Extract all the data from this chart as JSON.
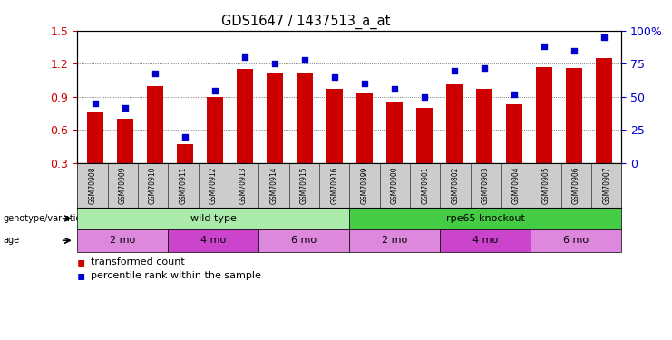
{
  "title": "GDS1647 / 1437513_a_at",
  "samples": [
    "GSM70908",
    "GSM70909",
    "GSM70910",
    "GSM70911",
    "GSM70912",
    "GSM70913",
    "GSM70914",
    "GSM70915",
    "GSM70916",
    "GSM70899",
    "GSM70900",
    "GSM70901",
    "GSM70802",
    "GSM70903",
    "GSM70904",
    "GSM70905",
    "GSM70906",
    "GSM70907"
  ],
  "bar_values": [
    0.76,
    0.7,
    1.0,
    0.47,
    0.9,
    1.15,
    1.12,
    1.11,
    0.97,
    0.93,
    0.86,
    0.8,
    1.01,
    0.97,
    0.83,
    1.17,
    1.16,
    1.25
  ],
  "dot_values": [
    45,
    42,
    68,
    20,
    55,
    80,
    75,
    78,
    65,
    60,
    56,
    50,
    70,
    72,
    52,
    88,
    85,
    95
  ],
  "bar_color": "#cc0000",
  "dot_color": "#0000cc",
  "ylim_left": [
    0.3,
    1.5
  ],
  "ylim_right": [
    0,
    100
  ],
  "yticks_left": [
    0.3,
    0.6,
    0.9,
    1.2,
    1.5
  ],
  "yticks_right": [
    0,
    25,
    50,
    75,
    100
  ],
  "ytick_labels_right": [
    "0",
    "25",
    "50",
    "75",
    "100%"
  ],
  "genotype_groups": [
    {
      "label": "wild type",
      "start": 0,
      "end": 9,
      "color": "#aaeaaa"
    },
    {
      "label": "rpe65 knockout",
      "start": 9,
      "end": 18,
      "color": "#44cc44"
    }
  ],
  "age_groups": [
    {
      "label": "2 mo",
      "start": 0,
      "end": 3,
      "color": "#dd88dd"
    },
    {
      "label": "4 mo",
      "start": 3,
      "end": 6,
      "color": "#cc44cc"
    },
    {
      "label": "6 mo",
      "start": 6,
      "end": 9,
      "color": "#dd88dd"
    },
    {
      "label": "2 mo",
      "start": 9,
      "end": 12,
      "color": "#dd88dd"
    },
    {
      "label": "4 mo",
      "start": 12,
      "end": 15,
      "color": "#cc44cc"
    },
    {
      "label": "6 mo",
      "start": 15,
      "end": 18,
      "color": "#dd88dd"
    }
  ],
  "legend_items": [
    {
      "label": "transformed count",
      "color": "#cc0000"
    },
    {
      "label": "percentile rank within the sample",
      "color": "#0000cc"
    }
  ],
  "background_color": "#ffffff",
  "grid_color": "#555555",
  "tick_label_color_left": "#cc0000",
  "tick_label_color_right": "#0000cc",
  "xtick_bg_color": "#cccccc"
}
